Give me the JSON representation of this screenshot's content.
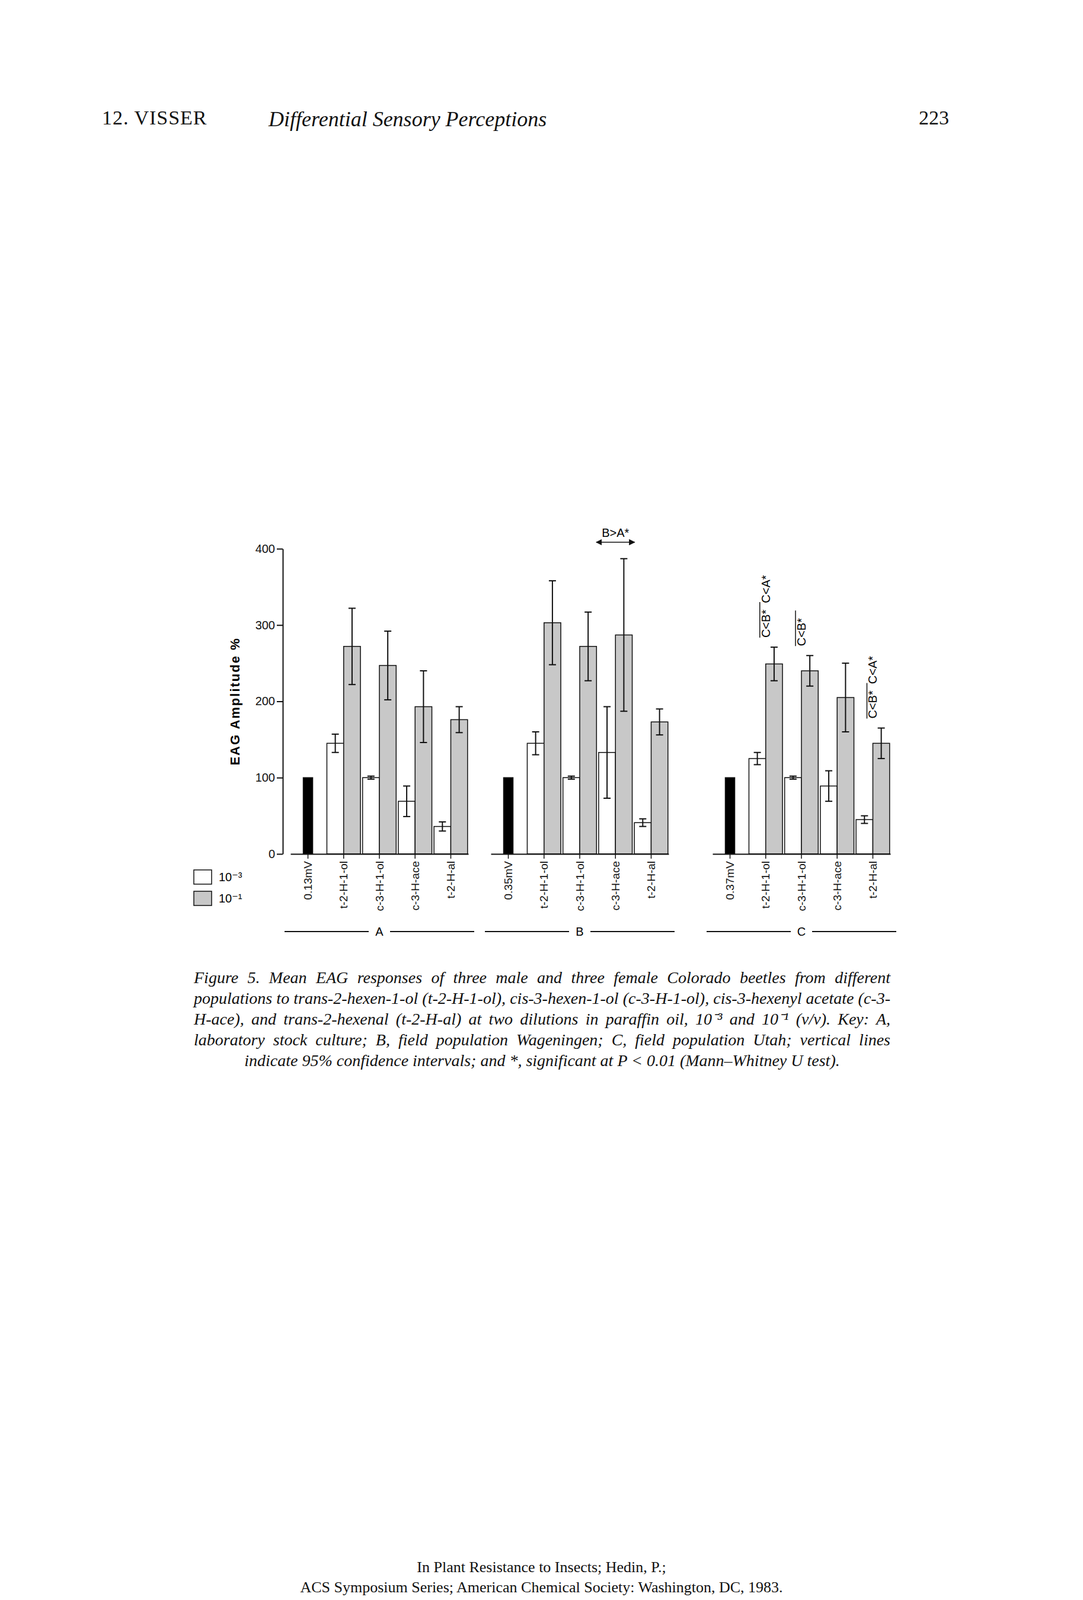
{
  "header": {
    "left": "12. VISSER",
    "title": "Differential Sensory Perceptions",
    "page": "223"
  },
  "chart_data": {
    "type": "bar",
    "ylabel": "EAG Amplitude %",
    "ylim": [
      0,
      400
    ],
    "yticks": [
      0,
      100,
      200,
      300,
      400
    ],
    "legend": "lower left",
    "series": [
      {
        "color": "#000000"
      },
      {
        "name": "10⁻³",
        "color": "#ffffff"
      },
      {
        "name": "10⁻¹",
        "color": "#c8c8c8"
      }
    ],
    "panels": [
      {
        "xlabel": "A",
        "categories": [
          "0.13mV",
          "t-2-H-1-ol",
          "c-3-H-1-ol",
          "c-3-H-ace",
          "t-2-H-al"
        ],
        "values": [
          [
            100,
            null,
            null,
            null,
            null
          ],
          [
            null,
            145,
            100,
            69,
            36
          ],
          [
            null,
            272,
            247,
            193,
            176
          ]
        ],
        "errors": [
          [
            null,
            null,
            null,
            null,
            null
          ],
          [
            null,
            12,
            2,
            20,
            6
          ],
          [
            null,
            50,
            45,
            47,
            17
          ]
        ]
      },
      {
        "xlabel": "B",
        "categories": [
          "0.35mV",
          "t-2-H-1-ol",
          "c-3-H-1-ol",
          "c-3-H-ace",
          "t-2-H-al"
        ],
        "values": [
          [
            100,
            null,
            null,
            null,
            null
          ],
          [
            null,
            145,
            100,
            133,
            41
          ],
          [
            null,
            303,
            272,
            287,
            173
          ]
        ],
        "errors": [
          [
            null,
            null,
            null,
            null,
            null
          ],
          [
            null,
            15,
            2,
            60,
            5
          ],
          [
            null,
            55,
            45,
            100,
            17
          ]
        ],
        "annotations": [
          {
            "text": "B>A*",
            "category": "c-3-H-ace"
          }
        ]
      },
      {
        "xlabel": "C",
        "categories": [
          "0.37mV",
          "t-2-H-1-ol",
          "c-3-H-1-ol",
          "c-3-H-ace",
          "t-2-H-al"
        ],
        "values": [
          [
            100,
            null,
            null,
            null,
            null
          ],
          [
            null,
            125,
            100,
            89,
            45
          ],
          [
            null,
            249,
            240,
            205,
            145
          ]
        ],
        "errors": [
          [
            null,
            null,
            null,
            null,
            null
          ],
          [
            null,
            8,
            2,
            20,
            5
          ],
          [
            null,
            22,
            20,
            45,
            20
          ]
        ],
        "annotations": [
          {
            "text": "C<B*  C<A*",
            "category": "t-2-H-1-ol"
          },
          {
            "text": "C<B*",
            "category": "c-3-H-1-ol"
          },
          {
            "text": "C<B*  C<A*",
            "category": "t-2-H-al"
          }
        ]
      }
    ]
  },
  "caption": "Figure 5. Mean EAG responses of three male and three female Colorado beetles from different populations to trans-2-hexen-1-ol (t-2-H-1-ol), cis-3-hexen-1-ol (c-3-H-1-ol), cis-3-hexenyl acetate (c-3-H-ace), and trans-2-hexenal (t-2-H-al) at two dilutions in paraffin oil, 10⁻³ and 10⁻¹ (v/v). Key: A, laboratory stock culture; B, field population Wageningen; C, field population Utah; vertical lines indicate 95% confidence intervals; and *, significant at P < 0.01 (Mann–Whitney U test).",
  "footer": [
    "In Plant Resistance to Insects; Hedin, P.;",
    "ACS Symposium Series; American Chemical Society: Washington, DC, 1983."
  ]
}
